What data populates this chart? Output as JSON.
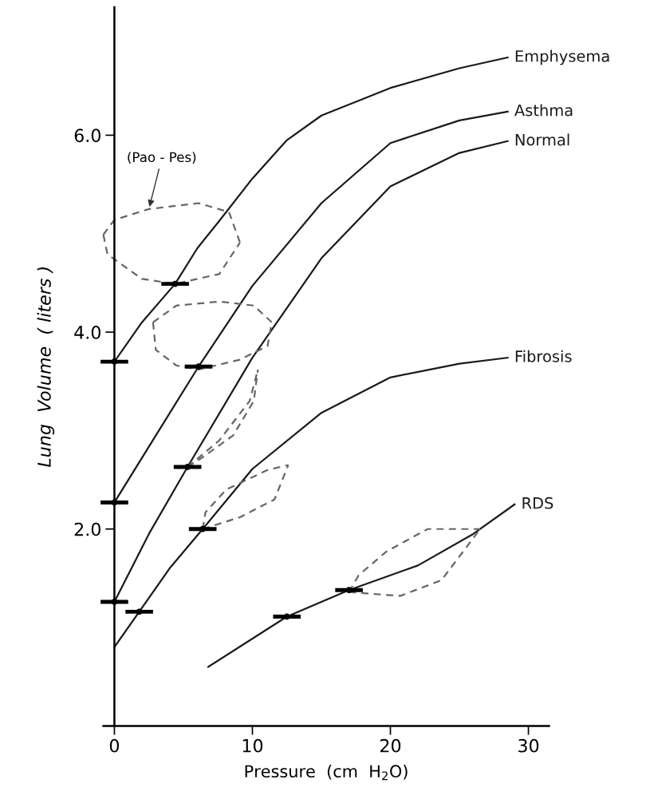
{
  "chart_data": {
    "type": "line",
    "xlabel": "Pressure  (cm  H$_{2}$O)",
    "ylabel": "Lung  Volume  ( liters )",
    "xlim": [
      -0.8,
      31.5
    ],
    "ylim": [
      0,
      7.3
    ],
    "xticks": [
      0,
      10,
      20,
      30
    ],
    "yticks": [
      {
        "value": 2,
        "label": "2.0"
      },
      {
        "value": 4,
        "label": "4.0"
      },
      {
        "value": 6,
        "label": "6.0"
      }
    ],
    "grid": false,
    "legend": false,
    "marker": "none",
    "line_style": "solid",
    "series": [
      {
        "name": "Emphysema",
        "color": "#1a1a1a",
        "x": [
          0,
          2,
          4.4,
          6,
          7.6,
          10,
          12.5,
          15,
          20,
          25,
          28.5
        ],
        "values": [
          3.7,
          4.1,
          4.49,
          4.85,
          5.13,
          5.56,
          5.95,
          6.2,
          6.48,
          6.68,
          6.79
        ]
      },
      {
        "name": "Asthma",
        "color": "#1a1a1a",
        "x": [
          0,
          3,
          6.1,
          10,
          15,
          20,
          25,
          28.5
        ],
        "values": [
          2.27,
          2.95,
          3.65,
          4.47,
          5.31,
          5.92,
          6.15,
          6.24
        ]
      },
      {
        "name": "Normal",
        "color": "#1a1a1a",
        "x": [
          0,
          2.5,
          5.3,
          10,
          15,
          20,
          25,
          28.5
        ],
        "values": [
          1.26,
          1.95,
          2.63,
          3.74,
          4.75,
          5.48,
          5.82,
          5.94
        ]
      },
      {
        "name": "Fibrosis",
        "color": "#1a1a1a",
        "x": [
          0,
          1.8,
          4,
          6.4,
          10,
          15,
          20,
          25,
          28.5
        ],
        "values": [
          0.8,
          1.16,
          1.6,
          2.0,
          2.61,
          3.18,
          3.54,
          3.68,
          3.74
        ]
      },
      {
        "name": "RDS",
        "color": "#1a1a1a",
        "x": [
          6.8,
          12.5,
          17,
          22,
          26,
          29
        ],
        "values": [
          0.6,
          1.11,
          1.38,
          1.63,
          1.95,
          2.25
        ]
      },
      {
        "type": "scatter",
        "marker": "circle",
        "color": "#000000",
        "x": [
          0,
          4.4,
          0,
          6.1,
          0,
          5.3,
          1.8,
          6.4,
          12.5,
          17
        ],
        "values": [
          3.7,
          4.49,
          2.27,
          3.65,
          1.26,
          2.63,
          1.16,
          2.0,
          1.11,
          1.38
        ],
        "xerrors": [
          1,
          1,
          1,
          1,
          1,
          1,
          1,
          1,
          1,
          1
        ]
      },
      {
        "line_style": "dashed",
        "color": "#666666",
        "x": [
          -0.8,
          -0.5,
          2.0,
          4.4,
          7.6,
          9.1
        ],
        "values": [
          4.99,
          4.79,
          4.54,
          4.49,
          4.59,
          4.91
        ]
      },
      {
        "line_style": "dashed",
        "color": "#666666",
        "x": [
          -0.8,
          0,
          2.5,
          6.1,
          8.3,
          9.1
        ],
        "values": [
          4.99,
          5.14,
          5.25,
          5.31,
          5.22,
          4.91
        ]
      },
      {
        "line_style": "dashed",
        "color": "#666666",
        "x": [
          2.8,
          3.0,
          4.5,
          6.1,
          9.1,
          11.1,
          11.4
        ],
        "values": [
          4.1,
          3.82,
          3.66,
          3.62,
          3.72,
          3.86,
          4.1
        ]
      },
      {
        "line_style": "dashed",
        "color": "#666666",
        "x": [
          2.8,
          4.5,
          7.6,
          10.1,
          11.4
        ],
        "values": [
          4.1,
          4.27,
          4.31,
          4.27,
          4.1
        ]
      },
      {
        "line_style": "dashed",
        "color": "#666666",
        "x": [
          5.3,
          7.6,
          9.8,
          10.4
        ],
        "values": [
          2.63,
          2.9,
          3.3,
          3.62
        ]
      },
      {
        "line_style": "dashed",
        "color": "#666666",
        "x": [
          5.3,
          6.3,
          8.6,
          10.1,
          10.4
        ],
        "values": [
          2.63,
          2.72,
          2.95,
          3.3,
          3.62
        ]
      },
      {
        "line_style": "dashed",
        "color": "#666666",
        "x": [
          6.4,
          9.1,
          11.6,
          12.6
        ],
        "values": [
          2.0,
          2.12,
          2.3,
          2.65
        ]
      },
      {
        "line_style": "dashed",
        "color": "#666666",
        "x": [
          6.4,
          6.6,
          8.1,
          11.1,
          12.6
        ],
        "values": [
          2.0,
          2.17,
          2.4,
          2.6,
          2.65
        ]
      },
      {
        "line_style": "dashed",
        "color": "#666666",
        "x": [
          17,
          20.7,
          23.7,
          26.5
        ],
        "values": [
          1.36,
          1.32,
          1.48,
          2.0
        ]
      },
      {
        "line_style": "dashed",
        "color": "#666666",
        "x": [
          17,
          17.7,
          19.7,
          22.7,
          26.5
        ],
        "values": [
          1.36,
          1.53,
          1.77,
          2.0,
          2.0
        ]
      }
    ],
    "annotations": [
      {
        "text": "(Pao - Pes)",
        "x": 2.5,
        "y": 5.25
      }
    ]
  }
}
